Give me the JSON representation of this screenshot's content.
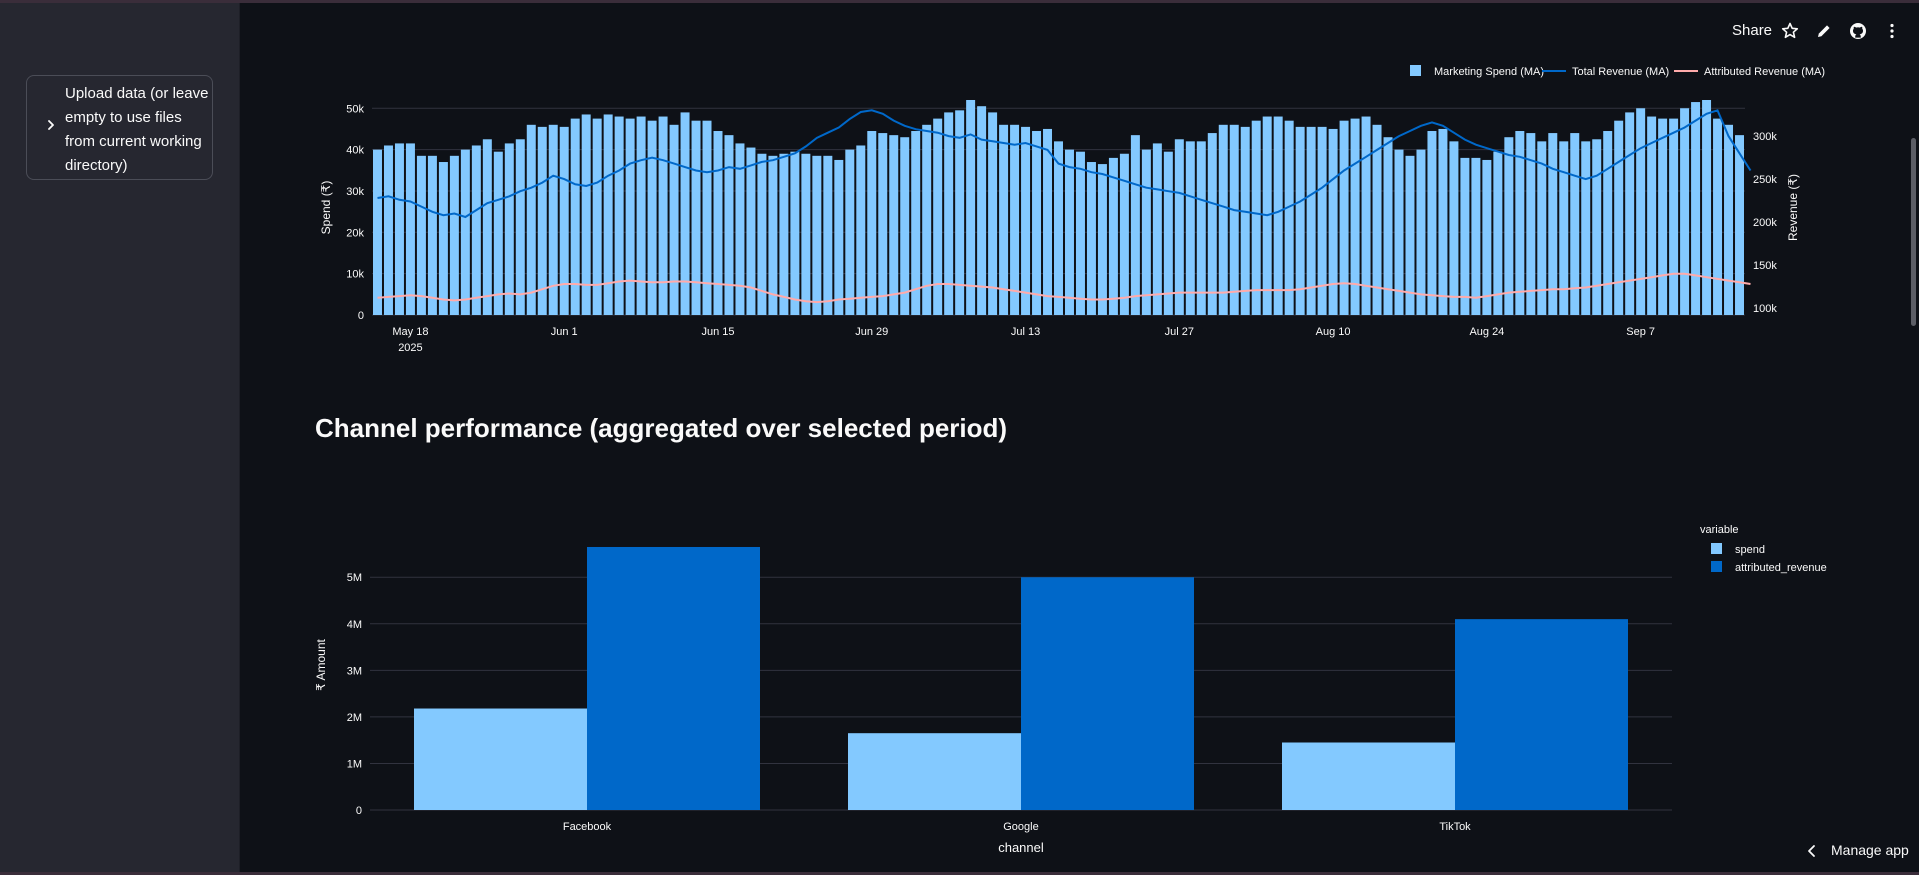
{
  "sidebar": {
    "upload_label": "Upload data (or leave empty to use files from current working directory)",
    "upload_lines": [
      "Upload data (or leave",
      "empty to use files",
      "from current working",
      "directory)"
    ]
  },
  "toolbar": {
    "share_label": "Share",
    "icons": [
      "star-icon",
      "edit-pencil-icon",
      "github-icon",
      "more-vertical-icon"
    ]
  },
  "section_title": "Channel performance (aggregated over selected period)",
  "manage_app_label": "Manage app",
  "colors": {
    "background": "#0e1117",
    "sidebar": "#262730",
    "spend_bar": "#83c9ff",
    "total_revenue_line": "#0068c9",
    "attributed_revenue_line": "#ffabab",
    "attributed_bar": "#0068c9"
  },
  "chart_data": [
    {
      "type": "bar+line",
      "title": "",
      "legend": [
        "Marketing Spend (MA)",
        "Total Revenue (MA)",
        "Attributed Revenue (MA)"
      ],
      "legend_position": "top-right",
      "ylabel": "Spend (₹)",
      "y2label": "Revenue (₹)",
      "ylim": [
        0,
        52000
      ],
      "y2lim": [
        92000,
        342000
      ],
      "y_ticks": [
        "0",
        "10k",
        "20k",
        "30k",
        "40k",
        "50k"
      ],
      "y_tick_values": [
        0,
        10000,
        20000,
        30000,
        40000,
        50000
      ],
      "y2_ticks": [
        "100k",
        "150k",
        "200k",
        "250k",
        "300k"
      ],
      "y2_tick_values": [
        100000,
        150000,
        200000,
        250000,
        300000
      ],
      "x_ticks": [
        "May 18",
        "Jun 1",
        "Jun 15",
        "Jun 29",
        "Jul 13",
        "Jul 27",
        "Aug 10",
        "Aug 24",
        "Sep 7"
      ],
      "x_tick_days": [
        3,
        17,
        31,
        45,
        59,
        73,
        87,
        101,
        115
      ],
      "x_year_label": "2025",
      "x_start": "2025-05-15",
      "grid": true,
      "series": [
        {
          "name": "Marketing Spend (MA)",
          "kind": "bar",
          "values": [
            40000,
            41000,
            41500,
            41500,
            38500,
            38500,
            37000,
            38500,
            40000,
            41000,
            42500,
            39500,
            41500,
            42500,
            46000,
            45500,
            46000,
            45500,
            47500,
            48500,
            47500,
            48500,
            48000,
            47500,
            48000,
            47000,
            48000,
            46000,
            49000,
            47000,
            47000,
            44500,
            43500,
            41500,
            40500,
            39000,
            38500,
            39000,
            39500,
            39000,
            38500,
            38500,
            37500,
            40000,
            41000,
            44500,
            44000,
            43500,
            43000,
            44500,
            46000,
            47500,
            49000,
            49500,
            52000,
            50500,
            49000,
            46000,
            46000,
            45500,
            44500,
            45000,
            42000,
            40000,
            39500,
            37000,
            36500,
            38000,
            39000,
            43500,
            40000,
            41500,
            39500,
            42500,
            42000,
            42000,
            44000,
            46000,
            46000,
            45500,
            47000,
            48000,
            48000,
            47000,
            45500,
            45500,
            45500,
            45000,
            47000,
            47500,
            48000,
            46000,
            43000,
            40000,
            38500,
            40000,
            44500,
            45000,
            42000,
            38000,
            38000,
            37500,
            39500,
            43000,
            44500,
            44000,
            42000,
            44000,
            42000,
            44000,
            42000,
            42500,
            44500,
            47000,
            49000,
            50000,
            48000,
            47500,
            47500,
            50000,
            51500,
            52000,
            47500,
            46000,
            43500
          ]
        },
        {
          "name": "Total Revenue (MA)",
          "kind": "line",
          "axis": "y2",
          "values": [
            228000,
            230000,
            226000,
            224000,
            218000,
            212000,
            208000,
            210000,
            206000,
            214000,
            222000,
            226000,
            230000,
            236000,
            240000,
            246000,
            254000,
            250000,
            244000,
            242000,
            246000,
            254000,
            260000,
            268000,
            272000,
            275000,
            272000,
            268000,
            264000,
            260000,
            258000,
            260000,
            264000,
            262000,
            266000,
            270000,
            272000,
            276000,
            280000,
            288000,
            298000,
            304000,
            310000,
            320000,
            328000,
            330000,
            326000,
            318000,
            312000,
            308000,
            306000,
            304000,
            300000,
            298000,
            302000,
            296000,
            294000,
            292000,
            290000,
            292000,
            288000,
            284000,
            268000,
            264000,
            262000,
            258000,
            256000,
            252000,
            248000,
            244000,
            240000,
            238000,
            236000,
            234000,
            230000,
            226000,
            222000,
            218000,
            214000,
            212000,
            210000,
            208000,
            212000,
            218000,
            224000,
            232000,
            240000,
            250000,
            260000,
            268000,
            276000,
            284000,
            292000,
            300000,
            306000,
            312000,
            316000,
            312000,
            304000,
            296000,
            290000,
            286000,
            282000,
            278000,
            276000,
            272000,
            268000,
            262000,
            258000,
            254000,
            250000,
            254000,
            262000,
            270000,
            278000,
            286000,
            292000,
            298000,
            304000,
            310000,
            318000,
            326000,
            330000,
            300000,
            280000,
            260000
          ]
        },
        {
          "name": "Attributed Revenue (MA)",
          "kind": "line",
          "axis": "y2",
          "values": [
            112000,
            113000,
            114000,
            115000,
            114000,
            112000,
            110000,
            109000,
            110000,
            112000,
            114000,
            116000,
            117000,
            116000,
            118000,
            122000,
            126000,
            128000,
            128000,
            127000,
            127000,
            129000,
            131000,
            132000,
            131000,
            130000,
            130000,
            131000,
            131000,
            130000,
            129000,
            128000,
            127000,
            126000,
            124000,
            120000,
            116000,
            113000,
            110000,
            108000,
            107000,
            108000,
            110000,
            111000,
            112000,
            113000,
            114000,
            116000,
            118000,
            122000,
            126000,
            128000,
            128000,
            127000,
            126000,
            125000,
            124000,
            122000,
            120000,
            118000,
            116000,
            114000,
            113000,
            112000,
            111000,
            110000,
            110000,
            111000,
            112000,
            114000,
            115000,
            116000,
            117000,
            118000,
            118000,
            118000,
            118000,
            118000,
            119000,
            120000,
            121000,
            121000,
            121000,
            121000,
            122000,
            124000,
            126000,
            128000,
            129000,
            128000,
            126000,
            124000,
            122000,
            120000,
            118000,
            116000,
            115000,
            114000,
            113000,
            113000,
            112000,
            114000,
            116000,
            118000,
            119000,
            120000,
            121000,
            122000,
            122000,
            123000,
            124000,
            126000,
            128000,
            130000,
            132000,
            134000,
            136000,
            138000,
            140000,
            140000,
            138000,
            136000,
            134000,
            132000,
            130000,
            128000
          ]
        }
      ]
    },
    {
      "type": "bar",
      "title": "",
      "categories": [
        "Facebook",
        "Google",
        "TikTok"
      ],
      "xlabel": "channel",
      "ylabel": "₹ Amount",
      "ylim": [
        0,
        5800000
      ],
      "y_ticks": [
        "0",
        "1M",
        "2M",
        "3M",
        "4M",
        "5M"
      ],
      "y_tick_values": [
        0,
        1000000,
        2000000,
        3000000,
        4000000,
        5000000
      ],
      "legend_title": "variable",
      "legend_position": "top-right",
      "grid": true,
      "series": [
        {
          "name": "spend",
          "values": [
            2180000,
            1650000,
            1450000
          ]
        },
        {
          "name": "attributed_revenue",
          "values": [
            5650000,
            5000000,
            4100000
          ]
        }
      ]
    }
  ]
}
